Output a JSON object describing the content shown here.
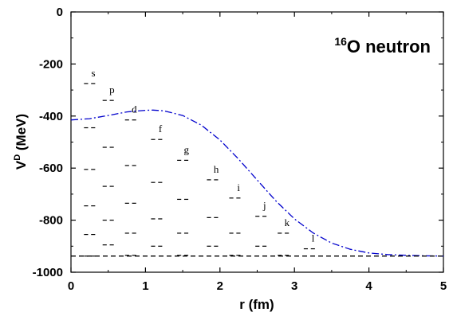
{
  "chart_data": {
    "type": "line",
    "annotation": {
      "superscript": "16",
      "text": "O neutron"
    },
    "xlabel": "r (fm)",
    "ylabel": {
      "main": "V",
      "superscript": "D",
      "unit": " (MeV)"
    },
    "xlim": [
      0,
      5
    ],
    "ylim": [
      -1000,
      0
    ],
    "xticks": [
      "0",
      "1",
      "2",
      "3",
      "4",
      "5"
    ],
    "yticks": [
      "0",
      "-200",
      "-400",
      "-600",
      "-800",
      "-1000"
    ],
    "series": [
      {
        "style": "dash-dot",
        "color": "#0000cc",
        "x": [
          0.0,
          0.25,
          0.5,
          0.75,
          1.0,
          1.1,
          1.25,
          1.5,
          1.75,
          2.0,
          2.25,
          2.5,
          2.75,
          3.0,
          3.25,
          3.5,
          3.75,
          4.0,
          4.25,
          4.5,
          4.75,
          5.0
        ],
        "y": [
          -415,
          -410,
          -398,
          -384,
          -378,
          -377,
          -380,
          -398,
          -435,
          -492,
          -565,
          -646,
          -726,
          -795,
          -849,
          -888,
          -912,
          -926,
          -932,
          -935,
          -937,
          -938
        ]
      },
      {
        "style": "dashed",
        "color": "#000000",
        "x": [
          0,
          5
        ],
        "y": [
          -938,
          -938
        ]
      }
    ],
    "levels": [
      {
        "label": "s",
        "x": 0.25,
        "energies": [
          -275,
          -445,
          -605,
          -745,
          -855,
          -938
        ]
      },
      {
        "label": "p",
        "x": 0.5,
        "energies": [
          -340,
          -520,
          -670,
          -800,
          -895
        ]
      },
      {
        "label": "d",
        "x": 0.8,
        "energies": [
          -415,
          -590,
          -735,
          -850,
          -935
        ]
      },
      {
        "label": "f",
        "x": 1.15,
        "energies": [
          -490,
          -655,
          -795,
          -900
        ]
      },
      {
        "label": "g",
        "x": 1.5,
        "energies": [
          -570,
          -720,
          -850,
          -935
        ]
      },
      {
        "label": "h",
        "x": 1.9,
        "energies": [
          -645,
          -790,
          -900
        ]
      },
      {
        "label": "i",
        "x": 2.2,
        "energies": [
          -715,
          -850,
          -935
        ]
      },
      {
        "label": "j",
        "x": 2.55,
        "energies": [
          -785,
          -900
        ]
      },
      {
        "label": "k",
        "x": 2.85,
        "energies": [
          -850,
          -935
        ]
      },
      {
        "label": "l",
        "x": 3.2,
        "energies": [
          -910
        ]
      }
    ]
  }
}
